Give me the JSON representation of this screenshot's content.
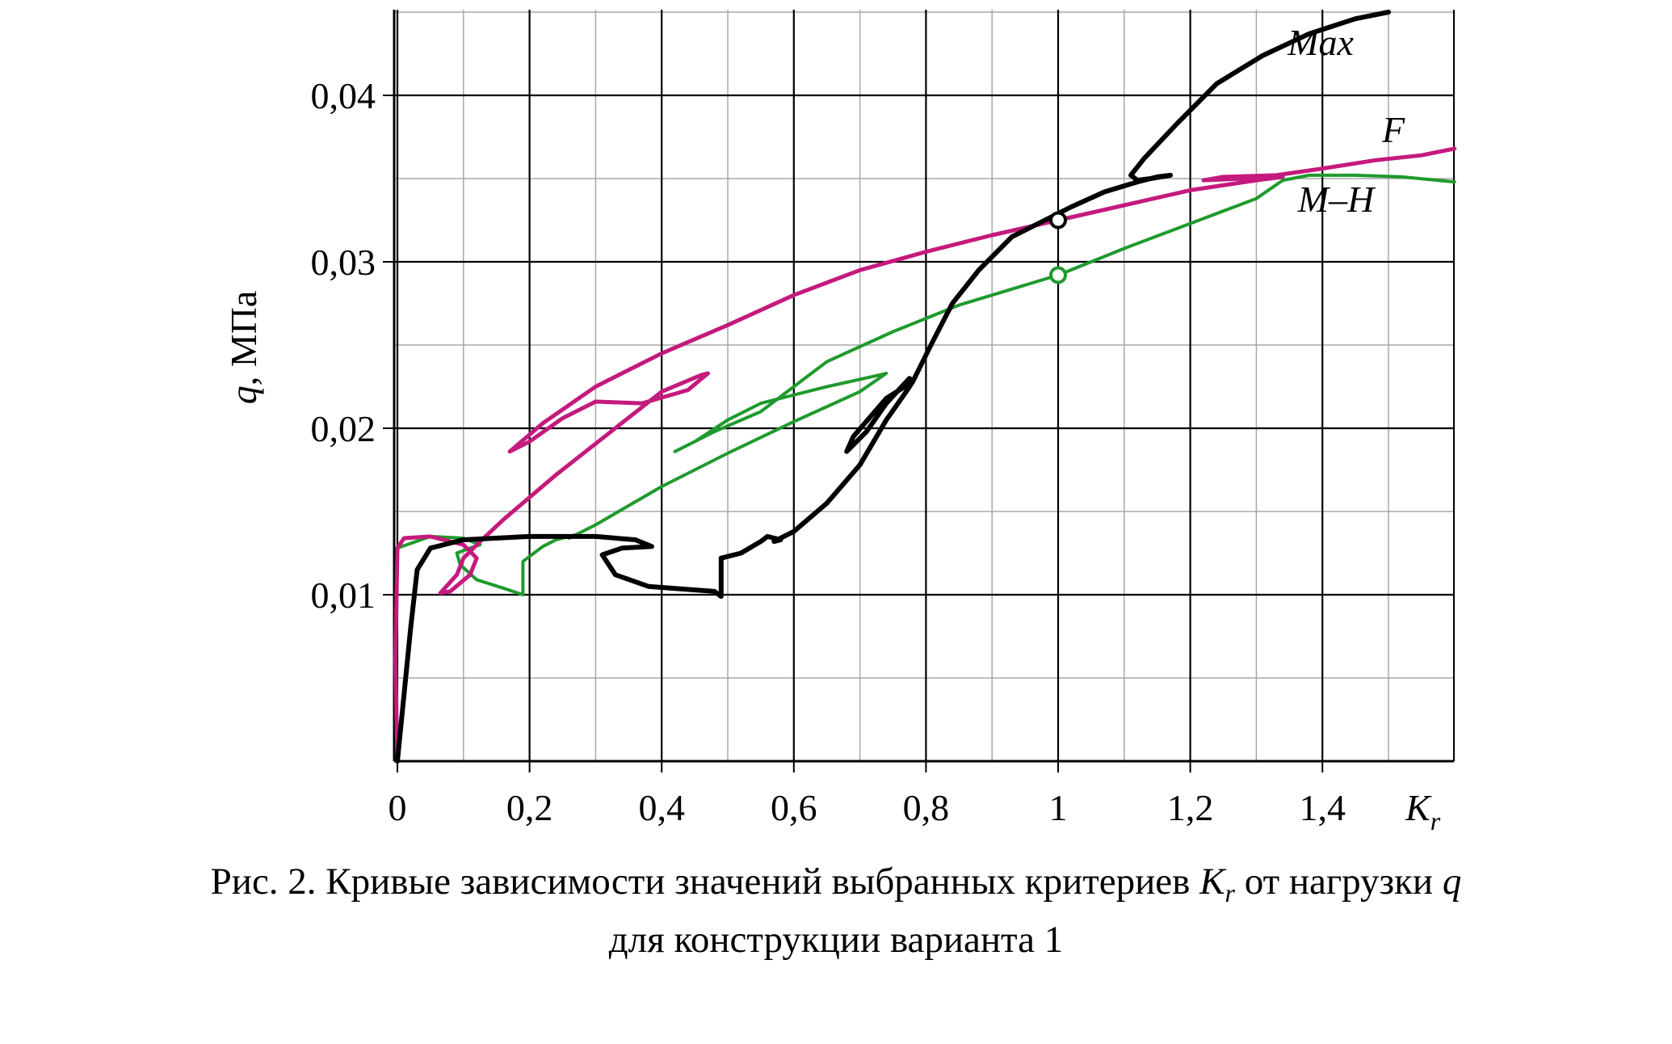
{
  "chart_data": {
    "type": "line",
    "xlabel_main": "K",
    "xlabel_sub": "r",
    "ylabel_var": "q",
    "ylabel_unit": ", МПа",
    "xlim": [
      0,
      1.6
    ],
    "ylim": [
      0,
      0.045
    ],
    "x_ticks": [
      {
        "v": 0,
        "label": "0"
      },
      {
        "v": 0.2,
        "label": "0,2"
      },
      {
        "v": 0.4,
        "label": "0,4"
      },
      {
        "v": 0.6,
        "label": "0,6"
      },
      {
        "v": 0.8,
        "label": "0,8"
      },
      {
        "v": 1.0,
        "label": "1"
      },
      {
        "v": 1.2,
        "label": "1,2"
      },
      {
        "v": 1.4,
        "label": "1,4"
      }
    ],
    "y_ticks": [
      {
        "v": 0.01,
        "label": "0,01"
      },
      {
        "v": 0.02,
        "label": "0,02"
      },
      {
        "v": 0.03,
        "label": "0,03"
      },
      {
        "v": 0.04,
        "label": "0,04"
      }
    ],
    "x_minor_step": 0.1,
    "y_minor_step": 0.005,
    "grid": true,
    "series": [
      {
        "name": "Max",
        "color": "#000000",
        "points": [
          [
            0.0,
            0.0
          ],
          [
            0.01,
            0.004
          ],
          [
            0.02,
            0.008
          ],
          [
            0.03,
            0.0115
          ],
          [
            0.05,
            0.0128
          ],
          [
            0.1,
            0.0133
          ],
          [
            0.2,
            0.0135
          ],
          [
            0.3,
            0.0135
          ],
          [
            0.36,
            0.0133
          ],
          [
            0.385,
            0.0129
          ],
          [
            0.34,
            0.0128
          ],
          [
            0.31,
            0.0124
          ],
          [
            0.33,
            0.0112
          ],
          [
            0.38,
            0.0105
          ],
          [
            0.48,
            0.0102
          ],
          [
            0.49,
            0.0099
          ],
          [
            0.49,
            0.0112
          ],
          [
            0.49,
            0.0122
          ],
          [
            0.52,
            0.0125
          ],
          [
            0.55,
            0.0132
          ],
          [
            0.56,
            0.0135
          ],
          [
            0.58,
            0.0133
          ],
          [
            0.57,
            0.0132
          ],
          [
            0.6,
            0.0138
          ],
          [
            0.65,
            0.0155
          ],
          [
            0.7,
            0.0178
          ],
          [
            0.74,
            0.0205
          ],
          [
            0.77,
            0.0222
          ],
          [
            0.78,
            0.0228
          ],
          [
            0.775,
            0.023
          ],
          [
            0.74,
            0.0215
          ],
          [
            0.71,
            0.0198
          ],
          [
            0.68,
            0.0186
          ],
          [
            0.69,
            0.0195
          ],
          [
            0.74,
            0.0218
          ],
          [
            0.78,
            0.0228
          ],
          [
            0.81,
            0.0252
          ],
          [
            0.84,
            0.0275
          ],
          [
            0.88,
            0.0295
          ],
          [
            0.93,
            0.0315
          ],
          [
            0.98,
            0.0325
          ],
          [
            1.02,
            0.0333
          ],
          [
            1.07,
            0.0342
          ],
          [
            1.12,
            0.0348
          ],
          [
            1.15,
            0.0351
          ],
          [
            1.17,
            0.0352
          ],
          [
            1.14,
            0.035
          ],
          [
            1.12,
            0.0349
          ],
          [
            1.11,
            0.0352
          ],
          [
            1.13,
            0.0362
          ],
          [
            1.18,
            0.0383
          ],
          [
            1.24,
            0.0407
          ],
          [
            1.31,
            0.0424
          ],
          [
            1.38,
            0.0437
          ],
          [
            1.45,
            0.0446
          ],
          [
            1.5,
            0.045
          ]
        ]
      },
      {
        "name": "F",
        "color": "#c41a7d",
        "points": [
          [
            0.0,
            0.0
          ],
          [
            -0.003,
            0.006
          ],
          [
            0.0,
            0.0128
          ],
          [
            0.01,
            0.0134
          ],
          [
            0.05,
            0.0135
          ],
          [
            0.1,
            0.013
          ],
          [
            0.12,
            0.0122
          ],
          [
            0.11,
            0.0112
          ],
          [
            0.08,
            0.0102
          ],
          [
            0.065,
            0.0101
          ],
          [
            0.09,
            0.0112
          ],
          [
            0.1,
            0.0122
          ],
          [
            0.12,
            0.013
          ],
          [
            0.16,
            0.0145
          ],
          [
            0.24,
            0.0172
          ],
          [
            0.32,
            0.0197
          ],
          [
            0.4,
            0.0222
          ],
          [
            0.46,
            0.0232
          ],
          [
            0.47,
            0.0233
          ],
          [
            0.44,
            0.0223
          ],
          [
            0.37,
            0.0215
          ],
          [
            0.3,
            0.0216
          ],
          [
            0.25,
            0.0206
          ],
          [
            0.2,
            0.0192
          ],
          [
            0.17,
            0.0186
          ],
          [
            0.22,
            0.0203
          ],
          [
            0.3,
            0.0225
          ],
          [
            0.4,
            0.0245
          ],
          [
            0.5,
            0.0262
          ],
          [
            0.6,
            0.028
          ],
          [
            0.7,
            0.0295
          ],
          [
            0.8,
            0.0306
          ],
          [
            0.9,
            0.0316
          ],
          [
            1.0,
            0.0325
          ],
          [
            1.1,
            0.0334
          ],
          [
            1.2,
            0.0343
          ],
          [
            1.3,
            0.0349
          ],
          [
            1.34,
            0.0351
          ],
          [
            1.28,
            0.035
          ],
          [
            1.22,
            0.0349
          ],
          [
            1.25,
            0.0351
          ],
          [
            1.33,
            0.0352
          ],
          [
            1.4,
            0.0356
          ],
          [
            1.48,
            0.0361
          ],
          [
            1.55,
            0.0364
          ],
          [
            1.6,
            0.0368
          ]
        ]
      },
      {
        "name": "M–H",
        "color": "#1f9a2d",
        "points": [
          [
            0.0,
            0.0128
          ],
          [
            0.05,
            0.0135
          ],
          [
            0.1,
            0.0134
          ],
          [
            0.125,
            0.013
          ],
          [
            0.11,
            0.0128
          ],
          [
            0.09,
            0.0125
          ],
          [
            0.095,
            0.0118
          ],
          [
            0.12,
            0.0109
          ],
          [
            0.16,
            0.0104
          ],
          [
            0.19,
            0.01
          ],
          [
            0.19,
            0.0112
          ],
          [
            0.19,
            0.012
          ],
          [
            0.22,
            0.0129
          ],
          [
            0.24,
            0.0133
          ],
          [
            0.27,
            0.0136
          ],
          [
            0.26,
            0.0134
          ],
          [
            0.3,
            0.0142
          ],
          [
            0.4,
            0.0165
          ],
          [
            0.5,
            0.0185
          ],
          [
            0.6,
            0.0204
          ],
          [
            0.7,
            0.0222
          ],
          [
            0.74,
            0.0233
          ],
          [
            0.73,
            0.0232
          ],
          [
            0.65,
            0.0225
          ],
          [
            0.55,
            0.0215
          ],
          [
            0.5,
            0.0205
          ],
          [
            0.45,
            0.0192
          ],
          [
            0.42,
            0.0186
          ],
          [
            0.48,
            0.0198
          ],
          [
            0.55,
            0.021
          ],
          [
            0.65,
            0.024
          ],
          [
            0.75,
            0.0258
          ],
          [
            0.85,
            0.0274
          ],
          [
            0.95,
            0.0286
          ],
          [
            1.0,
            0.0292
          ],
          [
            1.1,
            0.0308
          ],
          [
            1.2,
            0.0323
          ],
          [
            1.3,
            0.0338
          ],
          [
            1.34,
            0.0349
          ],
          [
            1.38,
            0.0352
          ],
          [
            1.45,
            0.0352
          ],
          [
            1.52,
            0.0351
          ],
          [
            1.6,
            0.0348
          ]
        ]
      }
    ],
    "markers": [
      {
        "series": "Max",
        "x": 1.0,
        "y": 0.0325,
        "color": "#000000"
      },
      {
        "series": "M–H",
        "x": 1.0,
        "y": 0.0292,
        "color": "#1f9a2d"
      }
    ]
  },
  "caption": {
    "line1_before": "Рис. 2. Кривые зависимости значений выбранных критериев ",
    "kr_main": "K",
    "kr_sub": "r",
    "line1_after": " от нагрузки ",
    "q_var": "q",
    "line2": "для конструкции варианта 1"
  }
}
